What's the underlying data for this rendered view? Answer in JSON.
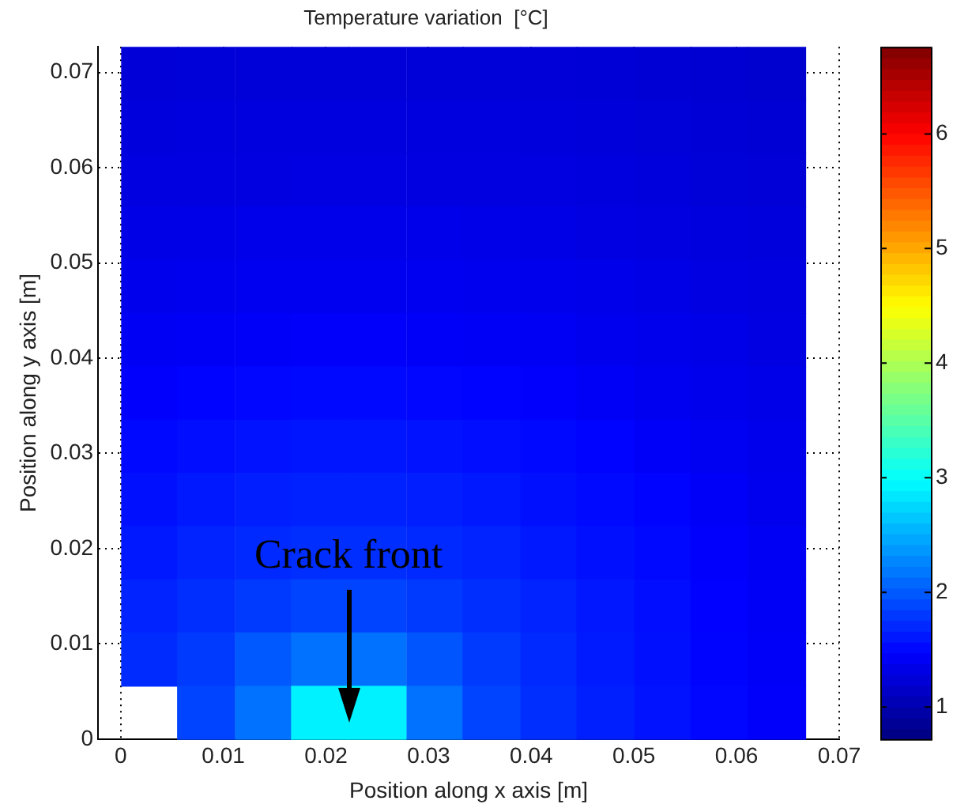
{
  "chart_data": {
    "type": "heatmap",
    "title": "Temperature variation  [°C]",
    "xlabel": "Position along x axis [m]",
    "ylabel": "Position along y axis [m]",
    "x": [
      0.0028,
      0.0083,
      0.0139,
      0.0194,
      0.025,
      0.0306,
      0.0361,
      0.0417,
      0.0472,
      0.0528,
      0.0583,
      0.0639
    ],
    "xlim": [
      -0.0022,
      0.07
    ],
    "xticks": [
      0,
      0.01,
      0.02,
      0.03,
      0.04,
      0.05,
      0.06,
      0.07
    ],
    "ylim": [
      0,
      0.0727
    ],
    "yticks": [
      0,
      0.01,
      0.02,
      0.03,
      0.04,
      0.05,
      0.06,
      0.07
    ],
    "clim": [
      0.72,
      6.76
    ],
    "cticks": [
      1,
      2,
      3,
      4,
      5,
      6
    ],
    "grid": true,
    "cells": [
      [
        1.24,
        1.25,
        1.25,
        1.25,
        1.25,
        1.25,
        1.25,
        1.24,
        1.23,
        1.22,
        1.21,
        1.19
      ],
      [
        1.27,
        1.28,
        1.28,
        1.28,
        1.28,
        1.28,
        1.28,
        1.27,
        1.26,
        1.25,
        1.23,
        1.22
      ],
      [
        1.29,
        1.3,
        1.3,
        1.31,
        1.31,
        1.3,
        1.3,
        1.29,
        1.28,
        1.27,
        1.25,
        1.24
      ],
      [
        1.33,
        1.34,
        1.35,
        1.35,
        1.35,
        1.35,
        1.34,
        1.33,
        1.31,
        1.3,
        1.28,
        1.27
      ],
      [
        1.36,
        1.38,
        1.39,
        1.39,
        1.39,
        1.39,
        1.38,
        1.36,
        1.35,
        1.33,
        1.31,
        1.29
      ],
      [
        1.41,
        1.43,
        1.44,
        1.45,
        1.45,
        1.44,
        1.43,
        1.41,
        1.38,
        1.36,
        1.34,
        1.31
      ],
      [
        1.46,
        1.49,
        1.51,
        1.52,
        1.52,
        1.51,
        1.49,
        1.46,
        1.43,
        1.39,
        1.36,
        1.34
      ],
      [
        1.52,
        1.55,
        1.58,
        1.6,
        1.6,
        1.58,
        1.55,
        1.52,
        1.49,
        1.44,
        1.4,
        1.36
      ],
      [
        1.57,
        1.62,
        1.65,
        1.67,
        1.67,
        1.65,
        1.62,
        1.57,
        1.53,
        1.49,
        1.44,
        1.38
      ],
      [
        1.62,
        1.68,
        1.72,
        1.75,
        1.75,
        1.72,
        1.68,
        1.62,
        1.57,
        1.52,
        1.46,
        1.41
      ],
      [
        1.68,
        1.75,
        1.82,
        1.88,
        1.88,
        1.82,
        1.75,
        1.68,
        1.61,
        1.55,
        1.48,
        1.42
      ],
      [
        1.73,
        1.82,
        2.0,
        2.15,
        2.15,
        1.98,
        1.82,
        1.72,
        1.63,
        1.57,
        1.5,
        1.44
      ],
      [
        null,
        1.88,
        2.15,
        2.9,
        2.9,
        2.15,
        1.88,
        1.75,
        1.66,
        1.58,
        1.51,
        1.45
      ]
    ],
    "annotations": [
      "Crack front"
    ]
  }
}
